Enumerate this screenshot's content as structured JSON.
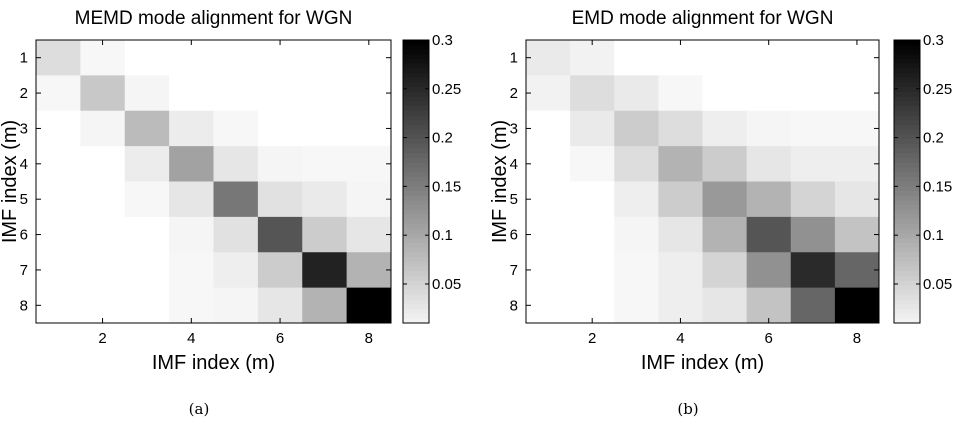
{
  "chart_data": [
    {
      "type": "heatmap",
      "title": "MEMD mode alignment for WGN",
      "xlabel": "IMF index (m)",
      "ylabel": "IMF index (m)",
      "x_ticks": [
        2,
        4,
        6,
        8
      ],
      "y_ticks": [
        1,
        2,
        3,
        4,
        5,
        6,
        7,
        8
      ],
      "caption": "(a)",
      "colorbar": {
        "range": [
          0.01,
          0.3
        ],
        "ticks": [
          "0.05",
          "0.1",
          "0.15",
          "0.2",
          "0.25",
          "0.3"
        ],
        "colormap": "gray-reversed"
      },
      "matrix": [
        [
          0.04,
          0.01,
          0,
          0,
          0,
          0,
          0,
          0
        ],
        [
          0.01,
          0.065,
          0.012,
          0,
          0,
          0,
          0,
          0
        ],
        [
          0,
          0.012,
          0.08,
          0.022,
          0.01,
          0,
          0,
          0
        ],
        [
          0,
          0,
          0.022,
          0.11,
          0.03,
          0.012,
          0.01,
          0.01
        ],
        [
          0,
          0,
          0.01,
          0.03,
          0.16,
          0.035,
          0.025,
          0.012
        ],
        [
          0,
          0,
          0,
          0.012,
          0.035,
          0.2,
          0.06,
          0.03
        ],
        [
          0,
          0,
          0,
          0.01,
          0.02,
          0.06,
          0.26,
          0.09
        ],
        [
          0,
          0,
          0,
          0.01,
          0.012,
          0.03,
          0.09,
          0.3
        ]
      ]
    },
    {
      "type": "heatmap",
      "title": "EMD mode alignment for WGN",
      "xlabel": "IMF index (m)",
      "ylabel": "IMF index (m)",
      "x_ticks": [
        2,
        4,
        6,
        8
      ],
      "y_ticks": [
        1,
        2,
        3,
        4,
        5,
        6,
        7,
        8
      ],
      "caption": "(b)",
      "colorbar": {
        "range": [
          0.01,
          0.3
        ],
        "ticks": [
          "0.05",
          "0.1",
          "0.15",
          "0.2",
          "0.25",
          "0.3"
        ],
        "colormap": "gray-reversed"
      },
      "matrix": [
        [
          0.025,
          0.015,
          0,
          0,
          0,
          0,
          0,
          0
        ],
        [
          0.015,
          0.04,
          0.025,
          0.01,
          0,
          0,
          0,
          0
        ],
        [
          0,
          0.025,
          0.06,
          0.04,
          0.02,
          0.012,
          0.01,
          0.01
        ],
        [
          0,
          0.01,
          0.04,
          0.09,
          0.06,
          0.03,
          0.02,
          0.02
        ],
        [
          0,
          0,
          0.02,
          0.06,
          0.12,
          0.09,
          0.05,
          0.03
        ],
        [
          0,
          0,
          0.012,
          0.03,
          0.09,
          0.2,
          0.13,
          0.07
        ],
        [
          0,
          0,
          0.01,
          0.02,
          0.05,
          0.13,
          0.25,
          0.18
        ],
        [
          0,
          0,
          0.01,
          0.02,
          0.03,
          0.07,
          0.18,
          0.3
        ]
      ]
    }
  ]
}
